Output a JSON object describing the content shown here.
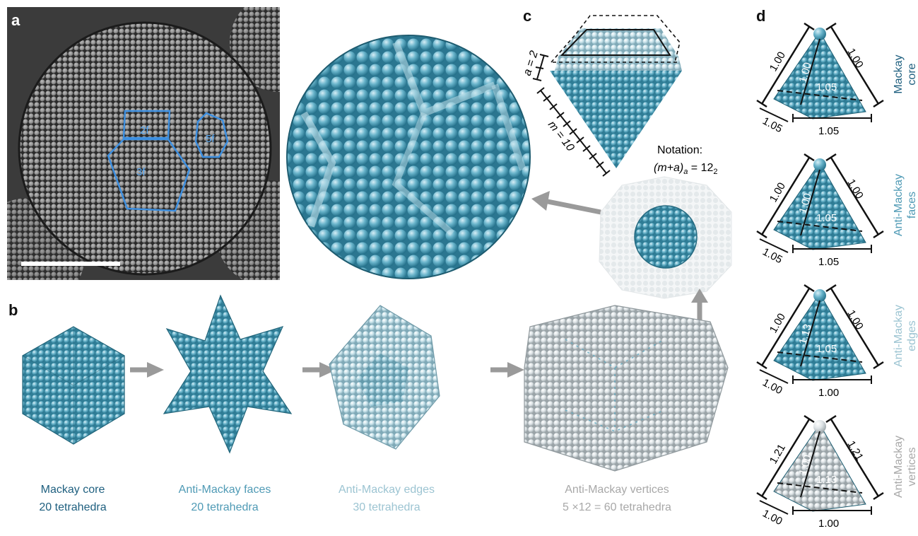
{
  "panels": {
    "a": {
      "letter": "a",
      "regions": [
        "2f",
        "3f",
        "5f"
      ]
    },
    "b": {
      "letter": "b",
      "stages": [
        {
          "line1": "Mackay core",
          "line2": "20 tetrahedra",
          "color": "#1e5f7f"
        },
        {
          "line1": "Anti-Mackay faces",
          "line2": "20 tetrahedra",
          "color": "#4f9ab5"
        },
        {
          "line1": "Anti-Mackay edges",
          "line2": "30 tetrahedra",
          "color": "#9cc4d2"
        },
        {
          "line1": "Anti-Mackay vertices",
          "line2": "5 ×12 = 60 tetrahedra",
          "color": "#a8a8a8"
        }
      ]
    },
    "c": {
      "letter": "c",
      "a_label": "a = 2",
      "m_label": "m = 10",
      "notation_title": "Notation:",
      "notation_formula": "(m+a)",
      "notation_sub": "a",
      "notation_eq": " = 12",
      "notation_eq_sub": "2"
    },
    "d": {
      "letter": "d",
      "rows": [
        {
          "label_line1": "Mackay",
          "label_line2": "core",
          "label_color": "#1e5f7f",
          "left": "1.00",
          "right": "1.00",
          "inner": "1.00",
          "face": "1.05",
          "front_left": "1.05",
          "bottom": "1.05",
          "tip": "#5aa7c0"
        },
        {
          "label_line1": "Anti-Mackay",
          "label_line2": "faces",
          "label_color": "#4f9ab5",
          "left": "1.00",
          "right": "1.00",
          "inner": "1.00",
          "face": "1.05",
          "front_left": "1.05",
          "bottom": "1.05",
          "tip": "#7fbdd0"
        },
        {
          "label_line1": "Anti-Mackay",
          "label_line2": "edges",
          "label_color": "#9cc4d2",
          "left": "1.00",
          "right": "1.00",
          "inner": "1.13",
          "face": "1.05",
          "front_left": "1.00",
          "bottom": "1.00",
          "tip": "#a9d2df"
        },
        {
          "label_line1": "Anti-Mackay",
          "label_line2": "vertices",
          "label_color": "#a8a8a8",
          "left": "1.21",
          "right": "1.21",
          "inner": "1.00",
          "face": "1.13",
          "front_left": "1.00",
          "bottom": "1.00",
          "tip": "#e6e9ea"
        }
      ]
    }
  }
}
